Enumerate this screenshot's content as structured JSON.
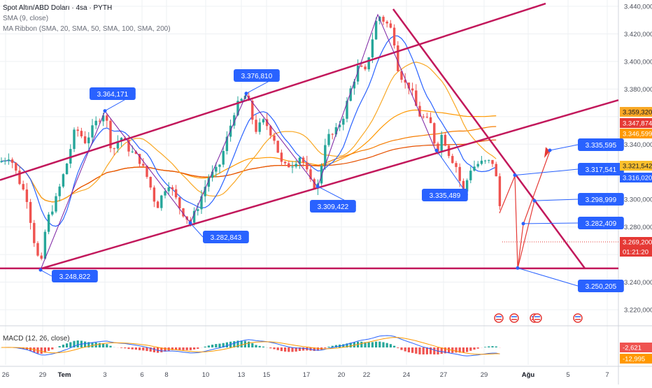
{
  "header": {
    "title": "Spot Altın/ABD Doları · 4sa · PYTH",
    "indicators": [
      "SMA (9, close)",
      "MA Ribbon (SMA, 20, SMA, 50, SMA, 100, SMA, 200)"
    ]
  },
  "macd_label": "MACD (12, 26, close)",
  "colors": {
    "up": "#26a69a",
    "down": "#ef5350",
    "channel": "#c2185b",
    "callout": "#2962ff",
    "sma9": "#2962ff",
    "ma20": "#f9a825",
    "ma50": "#ff9800",
    "ma100": "#f57c00",
    "ma200": "#e65100"
  },
  "chart_data": {
    "type": "candlestick",
    "price_axis": {
      "ticks": [
        "3.440,000",
        "3.420,000",
        "3.400,000",
        "3.380,000",
        "3.340,000",
        "3.300,000",
        "3.280,000",
        "3.240,000",
        "3.220,000"
      ],
      "range": [
        3210,
        3445
      ]
    },
    "time_axis": {
      "labels": [
        "26",
        "29",
        "Tem",
        "3",
        "6",
        "8",
        "10",
        "13",
        "15",
        "17",
        "20",
        "22",
        "24",
        "27",
        "29",
        "Ağu",
        "5",
        "7"
      ]
    },
    "price_badges": [
      {
        "value": "3.359,320",
        "color": "#f9a825"
      },
      {
        "value": "3.347,874",
        "color": "#e53935"
      },
      {
        "value": "3.346,599",
        "color": "#ff9800"
      },
      {
        "value": "3.321,542",
        "color": "#fbc02d"
      },
      {
        "value": "3.316,020",
        "color": "#2962ff"
      },
      {
        "value": "3.269,200",
        "color": "#e53935"
      },
      {
        "value": "01:21:20",
        "color": "#e53935"
      }
    ],
    "annotations": [
      {
        "text": "3.364,171",
        "price": 3364.171
      },
      {
        "text": "3.376,810",
        "price": 3376.81
      },
      {
        "text": "3.309,422",
        "price": 3309.422
      },
      {
        "text": "3.282,843",
        "price": 3282.843
      },
      {
        "text": "3.248,822",
        "price": 3248.822
      },
      {
        "text": "3.335,489",
        "price": 3335.489
      },
      {
        "text": "3.335,595",
        "price": 3335.595
      },
      {
        "text": "3.317,541",
        "price": 3317.541
      },
      {
        "text": "3.298,999",
        "price": 3298.999
      },
      {
        "text": "3.282,409",
        "price": 3282.409
      },
      {
        "text": "3.250,205",
        "price": 3250.205
      }
    ],
    "macd_badges": [
      {
        "value": "-2,621",
        "color": "#ef5350"
      },
      {
        "value": "-12,995",
        "color": "#ff9800"
      }
    ]
  }
}
